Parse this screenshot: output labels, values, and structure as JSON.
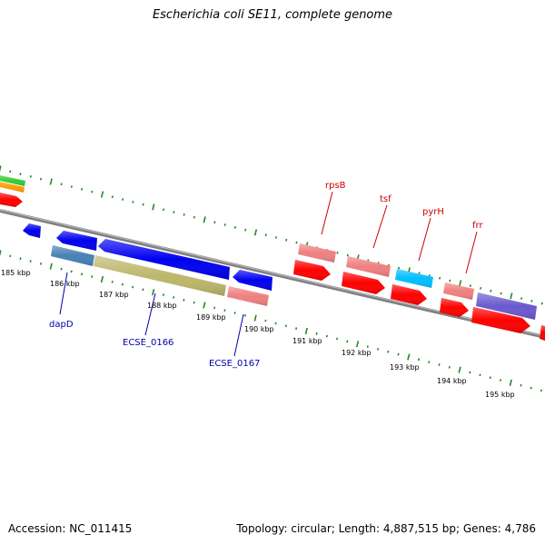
{
  "title": "Escherichia coli SE11, complete genome",
  "footer": {
    "accession": "Accession: NC_011415",
    "summary": "Topology: circular; Length: 4,887,515 bp; Genes: 4,786"
  },
  "colors": {
    "backbone": "#808080",
    "tick": "#228822",
    "forward_label": "#cc0000",
    "reverse_label": "#0000aa",
    "blue": "#0000ee",
    "steelblue": "#4682b4",
    "khaki": "#bdb76b",
    "salmon": "#f08080",
    "red": "#ff0000",
    "cyan": "#00bfff",
    "slateblue": "#6a5acd",
    "green": "#33cc33",
    "orange": "#ff9900"
  },
  "scale_labels": [
    "185 kbp",
    "186 kbp",
    "187 kbp",
    "188 kbp",
    "189 kbp",
    "190 kbp",
    "191 kbp",
    "192 kbp",
    "193 kbp",
    "194 kbp",
    "195 kbp"
  ],
  "gene_labels": {
    "forward": [
      "rpsB",
      "tsf",
      "pyrH",
      "frr"
    ],
    "reverse": [
      "dapD",
      "ECSE_0166",
      "ECSE_0167"
    ]
  }
}
